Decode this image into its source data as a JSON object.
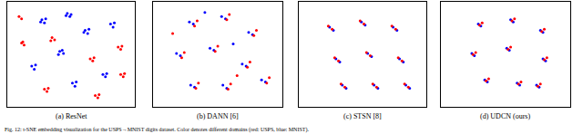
{
  "chart_data": [
    {
      "type": "scatter",
      "title": "(a) ResNet",
      "xlim": [
        0,
        100
      ],
      "ylim": [
        0,
        100
      ],
      "tick_labels": false,
      "grid": false,
      "marker": "circle",
      "series": [
        {
          "name": "MNIST",
          "color": "#0000ff",
          "x": [
            27,
            29,
            26,
            30,
            47,
            49,
            50,
            46,
            61,
            63,
            64,
            60,
            41,
            44,
            43,
            40,
            75,
            77,
            78,
            19,
            21,
            22,
            51,
            53,
            54,
            81,
            83,
            84
          ],
          "values": [
            83,
            80,
            81,
            84,
            89,
            86,
            88,
            87,
            73,
            70,
            74,
            71,
            53,
            51,
            54,
            50,
            31,
            29,
            32,
            39,
            36,
            40,
            23,
            20,
            24,
            79,
            76,
            80
          ]
        },
        {
          "name": "USPS",
          "color": "#ff0000",
          "x": [
            35,
            37,
            34,
            87,
            89,
            90,
            11,
            13,
            12,
            65,
            67,
            68,
            29,
            31,
            32,
            9,
            11,
            69,
            71,
            72,
            89,
            91,
            92
          ],
          "values": [
            66,
            64,
            63,
            57,
            55,
            58,
            61,
            59,
            62,
            46,
            44,
            47,
            17,
            15,
            18,
            86,
            84,
            11,
            9,
            12,
            31,
            29,
            32
          ]
        }
      ]
    },
    {
      "type": "scatter",
      "title": "(b) DANN [6]",
      "xlim": [
        0,
        100
      ],
      "ylim": [
        0,
        100
      ],
      "tick_labels": false,
      "grid": false,
      "marker": "circle",
      "series": [
        {
          "name": "MNIST",
          "color": "#0000ff",
          "x": [
            28,
            31,
            53,
            56,
            74,
            77,
            18,
            21,
            44,
            47,
            69,
            72,
            29,
            32,
            54,
            57,
            84,
            87,
            40,
            62
          ],
          "values": [
            81,
            79,
            86,
            84,
            71,
            69,
            51,
            49,
            56,
            54,
            41,
            39,
            21,
            19,
            21,
            18,
            26,
            24,
            90,
            60
          ]
        },
        {
          "name": "USPS",
          "color": "#ff0000",
          "x": [
            32,
            34,
            57,
            59,
            78,
            80,
            22,
            24,
            48,
            50,
            73,
            75,
            33,
            35,
            58,
            60,
            88,
            90,
            15,
            65
          ],
          "values": [
            77,
            82,
            83,
            88,
            68,
            73,
            47,
            52,
            53,
            58,
            38,
            43,
            18,
            23,
            17,
            22,
            23,
            28,
            70,
            30
          ]
        }
      ]
    },
    {
      "type": "scatter",
      "title": "(c) STSN [8]",
      "xlim": [
        0,
        100
      ],
      "ylim": [
        0,
        100
      ],
      "tick_labels": false,
      "grid": false,
      "marker": "circle",
      "series": [
        {
          "name": "MNIST",
          "color": "#0000ff",
          "x": [
            24,
            27,
            49,
            52,
            74,
            77,
            29,
            32,
            54,
            57,
            79,
            82,
            34,
            37,
            59,
            62,
            84,
            87
          ],
          "values": [
            76,
            73,
            81,
            78,
            76,
            73,
            46,
            43,
            51,
            48,
            46,
            43,
            21,
            18,
            21,
            18,
            21,
            18
          ]
        },
        {
          "name": "USPS",
          "color": "#ff0000",
          "x": [
            26,
            23,
            51,
            48,
            76,
            73,
            31,
            28,
            56,
            53,
            81,
            78,
            36,
            33,
            61,
            58,
            86,
            83
          ],
          "values": [
            74,
            77,
            79,
            82,
            74,
            77,
            44,
            47,
            49,
            52,
            44,
            47,
            19,
            22,
            19,
            22,
            19,
            22
          ]
        }
      ]
    },
    {
      "type": "scatter",
      "title": "(d) UDCN (ours)",
      "xlim": [
        0,
        100
      ],
      "ylim": [
        0,
        100
      ],
      "tick_labels": false,
      "grid": false,
      "marker": "circle",
      "series": [
        {
          "name": "MNIST",
          "color": "#0000ff",
          "x": [
            29,
            31,
            54,
            56,
            77,
            79,
            24,
            26,
            51,
            53,
            79,
            81,
            34,
            36,
            59,
            61,
            74,
            76
          ],
          "values": [
            79,
            77,
            83,
            81,
            73,
            71,
            51,
            49,
            56,
            54,
            46,
            44,
            26,
            24,
            23,
            21,
            21,
            19
          ]
        },
        {
          "name": "USPS",
          "color": "#ff0000",
          "x": [
            30,
            32,
            55,
            57,
            78,
            80,
            25,
            27,
            52,
            54,
            80,
            82,
            35,
            37,
            60,
            62,
            75,
            77
          ],
          "values": [
            78,
            80,
            82,
            84,
            72,
            74,
            50,
            52,
            55,
            57,
            45,
            47,
            25,
            27,
            22,
            24,
            20,
            22
          ]
        }
      ]
    }
  ],
  "caption": "Fig. 12: t-SNE embedding visualization for the USPS→MNIST digits dataset. Color denotes different domains (red: USPS, blue: MNIST)."
}
